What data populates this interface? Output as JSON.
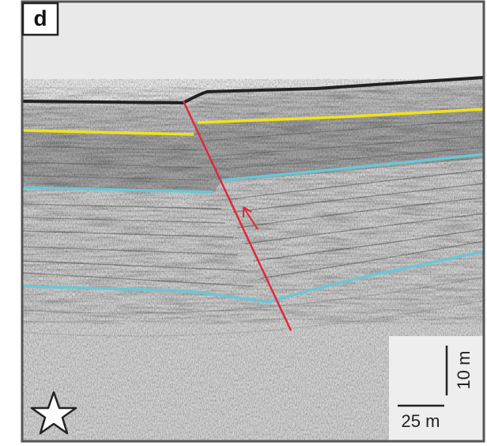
{
  "panel_label": "d",
  "scale_vertical": "10 m",
  "scale_horizontal": "25 m"
}
